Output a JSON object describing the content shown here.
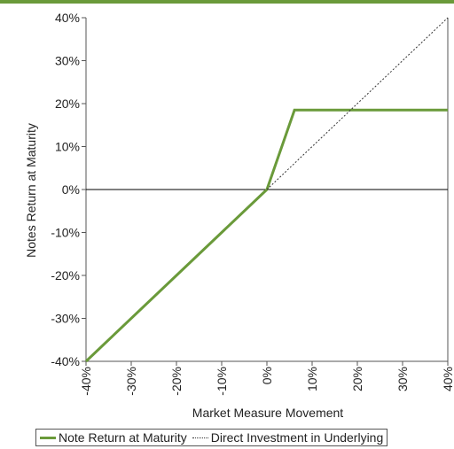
{
  "chart_data": {
    "type": "line",
    "title": "",
    "xlabel": "Market Measure Movement",
    "ylabel": "Notes Return at Maturity",
    "xlim": [
      -40,
      40
    ],
    "ylim": [
      -40,
      40
    ],
    "x_ticks": [
      "-40%",
      "-30%",
      "-20%",
      "-10%",
      "0%",
      "10%",
      "20%",
      "30%",
      "40%"
    ],
    "y_ticks": [
      "40%",
      "30%",
      "20%",
      "10%",
      "0%",
      "-10%",
      "-20%",
      "-30%",
      "-40%"
    ],
    "legend_position": "bottom",
    "series": [
      {
        "name": "Note Return at Maturity",
        "style": "solid",
        "color": "#6a9a3a",
        "points": [
          [
            -40,
            -40
          ],
          [
            0,
            0
          ],
          [
            6.1,
            18.5
          ],
          [
            40,
            18.5
          ]
        ]
      },
      {
        "name": "Direct Investment in Underlying",
        "style": "dotted",
        "color": "#333333",
        "points": [
          [
            0,
            0
          ],
          [
            40,
            40
          ]
        ]
      }
    ]
  }
}
